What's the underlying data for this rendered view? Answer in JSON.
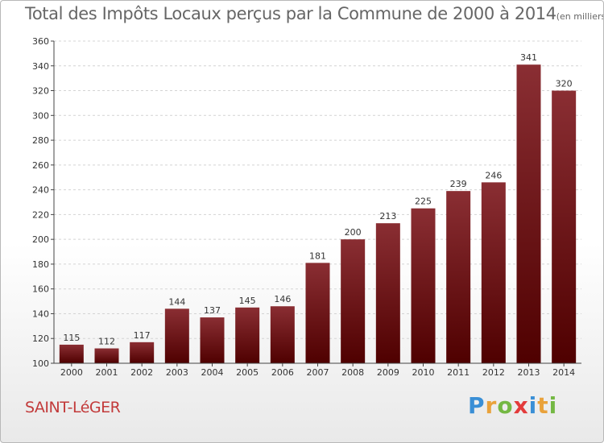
{
  "header": {
    "title": "Total des Impôts Locaux perçus par la Commune de 2000 à 2014",
    "unit": "(en milliers d'€)"
  },
  "commune": "SAINT-LéGER",
  "logo": {
    "text": "Proxiti",
    "letters": [
      {
        "ch": "P",
        "color": "#3a8fd6"
      },
      {
        "ch": "r",
        "color": "#e9a23b"
      },
      {
        "ch": "o",
        "color": "#74b843"
      },
      {
        "ch": "x",
        "color": "#e33b3b"
      },
      {
        "ch": "i",
        "color": "#3a8fd6"
      },
      {
        "ch": "t",
        "color": "#e9a23b"
      },
      {
        "ch": "i",
        "color": "#74b843"
      }
    ]
  },
  "colors": {
    "bar_top": "#8a2e33",
    "bar_bottom": "#4f0000",
    "grid": "#d4d4d4",
    "axis": "#444444",
    "text": "#333333"
  },
  "chart_data": {
    "type": "bar",
    "title": "Total des Impôts Locaux perçus par la Commune de 2000 à 2014",
    "xlabel": "",
    "ylabel": "en milliers d'€",
    "categories": [
      "2000",
      "2001",
      "2002",
      "2003",
      "2004",
      "2005",
      "2006",
      "2007",
      "2008",
      "2009",
      "2010",
      "2011",
      "2012",
      "2013",
      "2014"
    ],
    "values": [
      115,
      112,
      117,
      144,
      137,
      145,
      146,
      181,
      200,
      213,
      225,
      239,
      246,
      341,
      320
    ],
    "ylim": [
      100,
      360
    ],
    "yticks": [
      100,
      120,
      140,
      160,
      180,
      200,
      220,
      240,
      260,
      280,
      300,
      320,
      340,
      360
    ],
    "grid": true
  }
}
